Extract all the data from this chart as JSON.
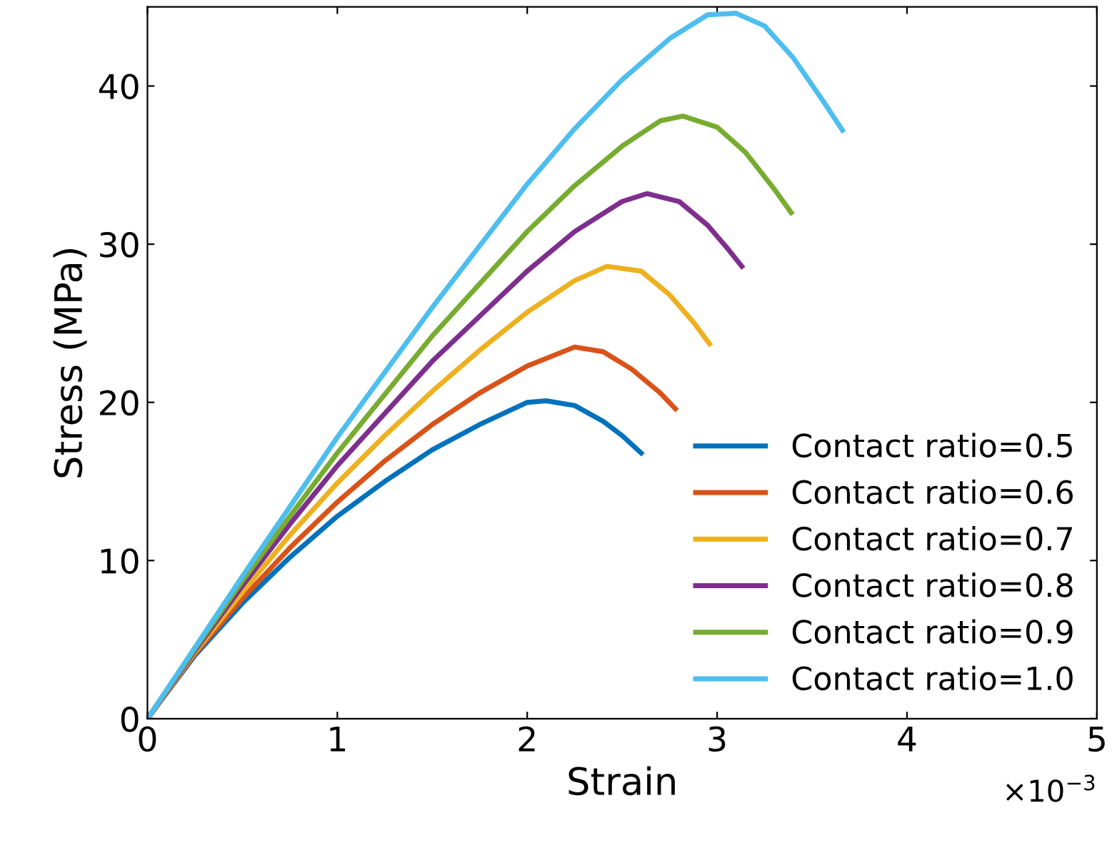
{
  "chart_data": {
    "type": "line",
    "xlabel": "Strain",
    "ylabel": "Stress (MPa)",
    "xlim": [
      0,
      5
    ],
    "ylim": [
      0,
      45
    ],
    "xticks": [
      0,
      1,
      2,
      3,
      4,
      5
    ],
    "yticks": [
      0,
      10,
      20,
      30,
      40
    ],
    "grid": false,
    "legend": "bottom right",
    "annotations": [
      "×10$^{−3}$"
    ],
    "series": [
      {
        "name": "Contact ratio=0.5",
        "color": "#0072bd",
        "x": [
          0,
          0.25,
          0.5,
          0.75,
          1,
          1.25,
          1.5,
          1.75,
          2.0,
          2.1,
          2.25,
          2.4,
          2.5,
          2.6
        ],
        "values": [
          0,
          4,
          7.3,
          10.2,
          12.8,
          15,
          17,
          18.6,
          20.0,
          20.1,
          19.8,
          18.8,
          17.9,
          16.8
        ]
      },
      {
        "name": "Contact ratio=0.6",
        "color": "#d95319",
        "x": [
          0,
          0.25,
          0.5,
          0.75,
          1,
          1.25,
          1.5,
          1.75,
          2,
          2.25,
          2.4,
          2.55,
          2.7,
          2.78
        ],
        "values": [
          0,
          4.1,
          7.6,
          10.8,
          13.7,
          16.3,
          18.6,
          20.6,
          22.3,
          23.5,
          23.2,
          22.1,
          20.6,
          19.6
        ]
      },
      {
        "name": "Contact ratio=0.7",
        "color": "#edb120",
        "x": [
          0,
          0.25,
          0.5,
          0.75,
          1,
          1.25,
          1.5,
          1.75,
          2,
          2.25,
          2.42,
          2.6,
          2.75,
          2.88,
          2.96
        ],
        "values": [
          0,
          4.2,
          8,
          11.6,
          14.9,
          17.9,
          20.7,
          23.3,
          25.7,
          27.7,
          28.6,
          28.3,
          26.8,
          25,
          23.7
        ]
      },
      {
        "name": "Contact ratio=0.8",
        "color": "#7e2f8e",
        "x": [
          0,
          0.25,
          0.5,
          0.75,
          1,
          1.5,
          2,
          2.25,
          2.5,
          2.63,
          2.8,
          2.95,
          3.05,
          3.13
        ],
        "values": [
          0,
          4.3,
          8.4,
          12.3,
          16,
          22.6,
          28.3,
          30.8,
          32.7,
          33.2,
          32.7,
          31.2,
          29.8,
          28.6
        ]
      },
      {
        "name": "Contact ratio=0.9",
        "color": "#77ac30",
        "x": [
          0,
          0.25,
          0.5,
          0.75,
          1,
          1.5,
          2,
          2.25,
          2.5,
          2.7,
          2.82,
          3,
          3.15,
          3.3,
          3.39
        ],
        "values": [
          0,
          4.4,
          8.7,
          12.8,
          16.8,
          24.2,
          30.8,
          33.7,
          36.2,
          37.8,
          38.1,
          37.4,
          35.8,
          33.5,
          32
        ]
      },
      {
        "name": "Contact ratio=1.0",
        "color": "#4dbeee",
        "x": [
          0,
          0.25,
          0.5,
          0.75,
          1,
          1.5,
          2,
          2.25,
          2.5,
          2.75,
          2.95,
          3.1,
          3.25,
          3.4,
          3.55,
          3.66
        ],
        "values": [
          0,
          4.5,
          9,
          13.4,
          17.8,
          26,
          33.8,
          37.3,
          40.4,
          43,
          44.5,
          44.6,
          43.8,
          41.8,
          39.2,
          37.2
        ]
      }
    ]
  }
}
